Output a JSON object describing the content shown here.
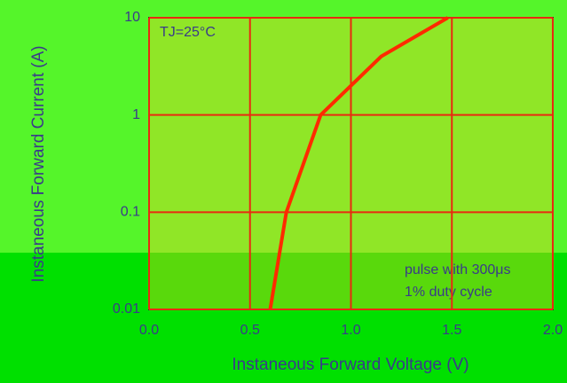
{
  "chart_data": {
    "type": "line",
    "x_label": "Instaneous Forward Voltage (V)",
    "y_label": "Instaneous Forward Current (A)",
    "annotations": [
      "TJ=25°C",
      "pulse with 300μs",
      "1% duty cycle"
    ],
    "x": [
      0.6,
      0.68,
      0.85,
      1.15,
      1.48
    ],
    "series": [
      {
        "color": "#ff2a00",
        "values": [
          0.01,
          0.1,
          1,
          4,
          10
        ]
      }
    ],
    "xlim": [
      0,
      2
    ],
    "xticks": [
      {
        "value": 0,
        "label": "0.0"
      },
      {
        "value": 0.5,
        "label": "0.5"
      },
      {
        "value": 1,
        "label": "1.0"
      },
      {
        "value": 1.5,
        "label": "1.5"
      },
      {
        "value": 2,
        "label": "2.0"
      }
    ],
    "ylim": [
      0.01,
      10
    ],
    "yticks": [
      0.01,
      0.1,
      1,
      10
    ],
    "log_y": true,
    "grid": true,
    "grid_color": "#e82a10"
  }
}
